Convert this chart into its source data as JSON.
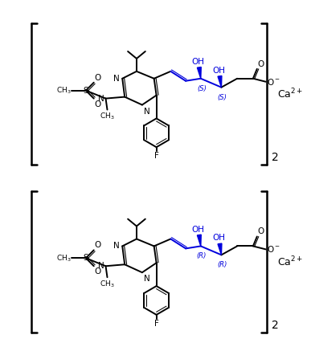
{
  "background_color": "#ffffff",
  "fig_width": 3.87,
  "fig_height": 4.32,
  "dpi": 100,
  "bond_color": "#000000",
  "blue_color": "#0000dd",
  "text_color": "#000000",
  "ca2_label": "Ca$^{2+}$",
  "subscript_2": "2",
  "top_s1": "(S)",
  "top_s2": "(S)",
  "bot_r1": "(R)",
  "bot_r2": "(R)"
}
